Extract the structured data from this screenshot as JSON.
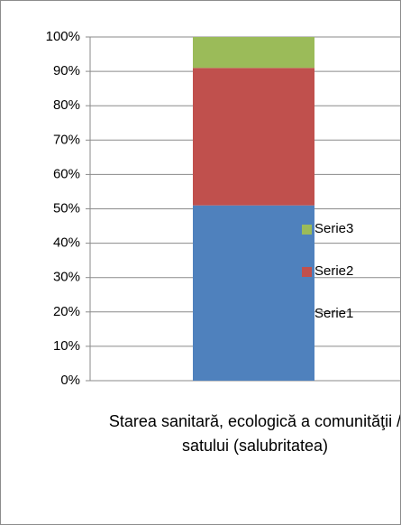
{
  "chart_data": {
    "type": "stacked_bar_100",
    "categories": [
      "Starea sanitară, ecologică a comunităţii / satului (salubritatea)"
    ],
    "series": [
      {
        "name": "Serie1",
        "color": "#4f81bd",
        "values": [
          51
        ]
      },
      {
        "name": "Serie2",
        "color": "#c0504d",
        "values": [
          40
        ]
      },
      {
        "name": "Serie3",
        "color": "#9bbb59",
        "values": [
          9
        ]
      }
    ],
    "ylim": [
      0,
      100
    ],
    "yticks": [
      {
        "value": 0,
        "label": "0%"
      },
      {
        "value": 10,
        "label": "10%"
      },
      {
        "value": 20,
        "label": "20%"
      },
      {
        "value": 30,
        "label": "30%"
      },
      {
        "value": 40,
        "label": "40%"
      },
      {
        "value": 50,
        "label": "50%"
      },
      {
        "value": 60,
        "label": "60%"
      },
      {
        "value": 70,
        "label": "70%"
      },
      {
        "value": 80,
        "label": "80%"
      },
      {
        "value": 90,
        "label": "90%"
      },
      {
        "value": 100,
        "label": "100%"
      }
    ],
    "grid": true,
    "legend": "right"
  }
}
